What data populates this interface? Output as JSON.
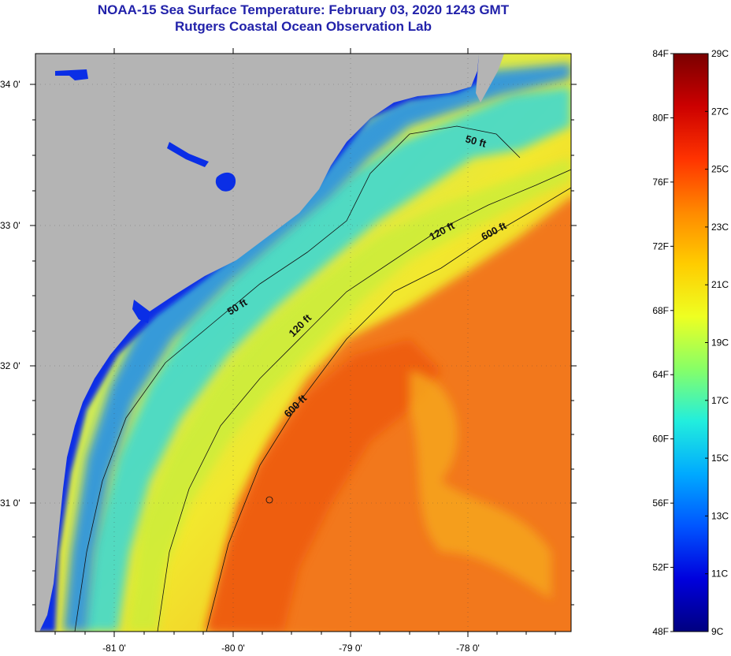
{
  "title": {
    "line1": "NOAA-15 Sea Surface Temperature:  February 03, 2020 1243 GMT",
    "line2": "Rutgers Coastal Ocean Observation Lab"
  },
  "map": {
    "lat_labels": [
      "34 0'",
      "33 0'",
      "32 0'",
      "31 0'"
    ],
    "lon_labels": [
      "-81 0'",
      "-80 0'",
      "-79 0'",
      "-78 0'"
    ],
    "contour_labels": [
      "50 ft",
      "50 ft",
      "120 ft",
      "120 ft",
      "600 ft",
      "600 ft"
    ],
    "colors": {
      "land": "#b4b4b4",
      "coastal": "#0a3ce6",
      "shelf": "#28c8e6",
      "midshelf": "#e6e628",
      "offshore": "#f06e14",
      "gulfstream": "#f05a0a"
    }
  },
  "colorbar": {
    "fahrenheit_labels": [
      "84F",
      "80F",
      "76F",
      "72F",
      "68F",
      "64F",
      "60F",
      "56F",
      "52F",
      "48F"
    ],
    "celsius_labels": [
      "29C",
      "27C",
      "25C",
      "23C",
      "21C",
      "19C",
      "17C",
      "15C",
      "13C",
      "11C",
      "9C"
    ],
    "gradient": [
      "#7a0000",
      "#cc0000",
      "#ff3300",
      "#ff8800",
      "#ffcc00",
      "#eeff22",
      "#88ff66",
      "#22eedd",
      "#00aaff",
      "#0055ff",
      "#0000dd",
      "#000080"
    ]
  }
}
